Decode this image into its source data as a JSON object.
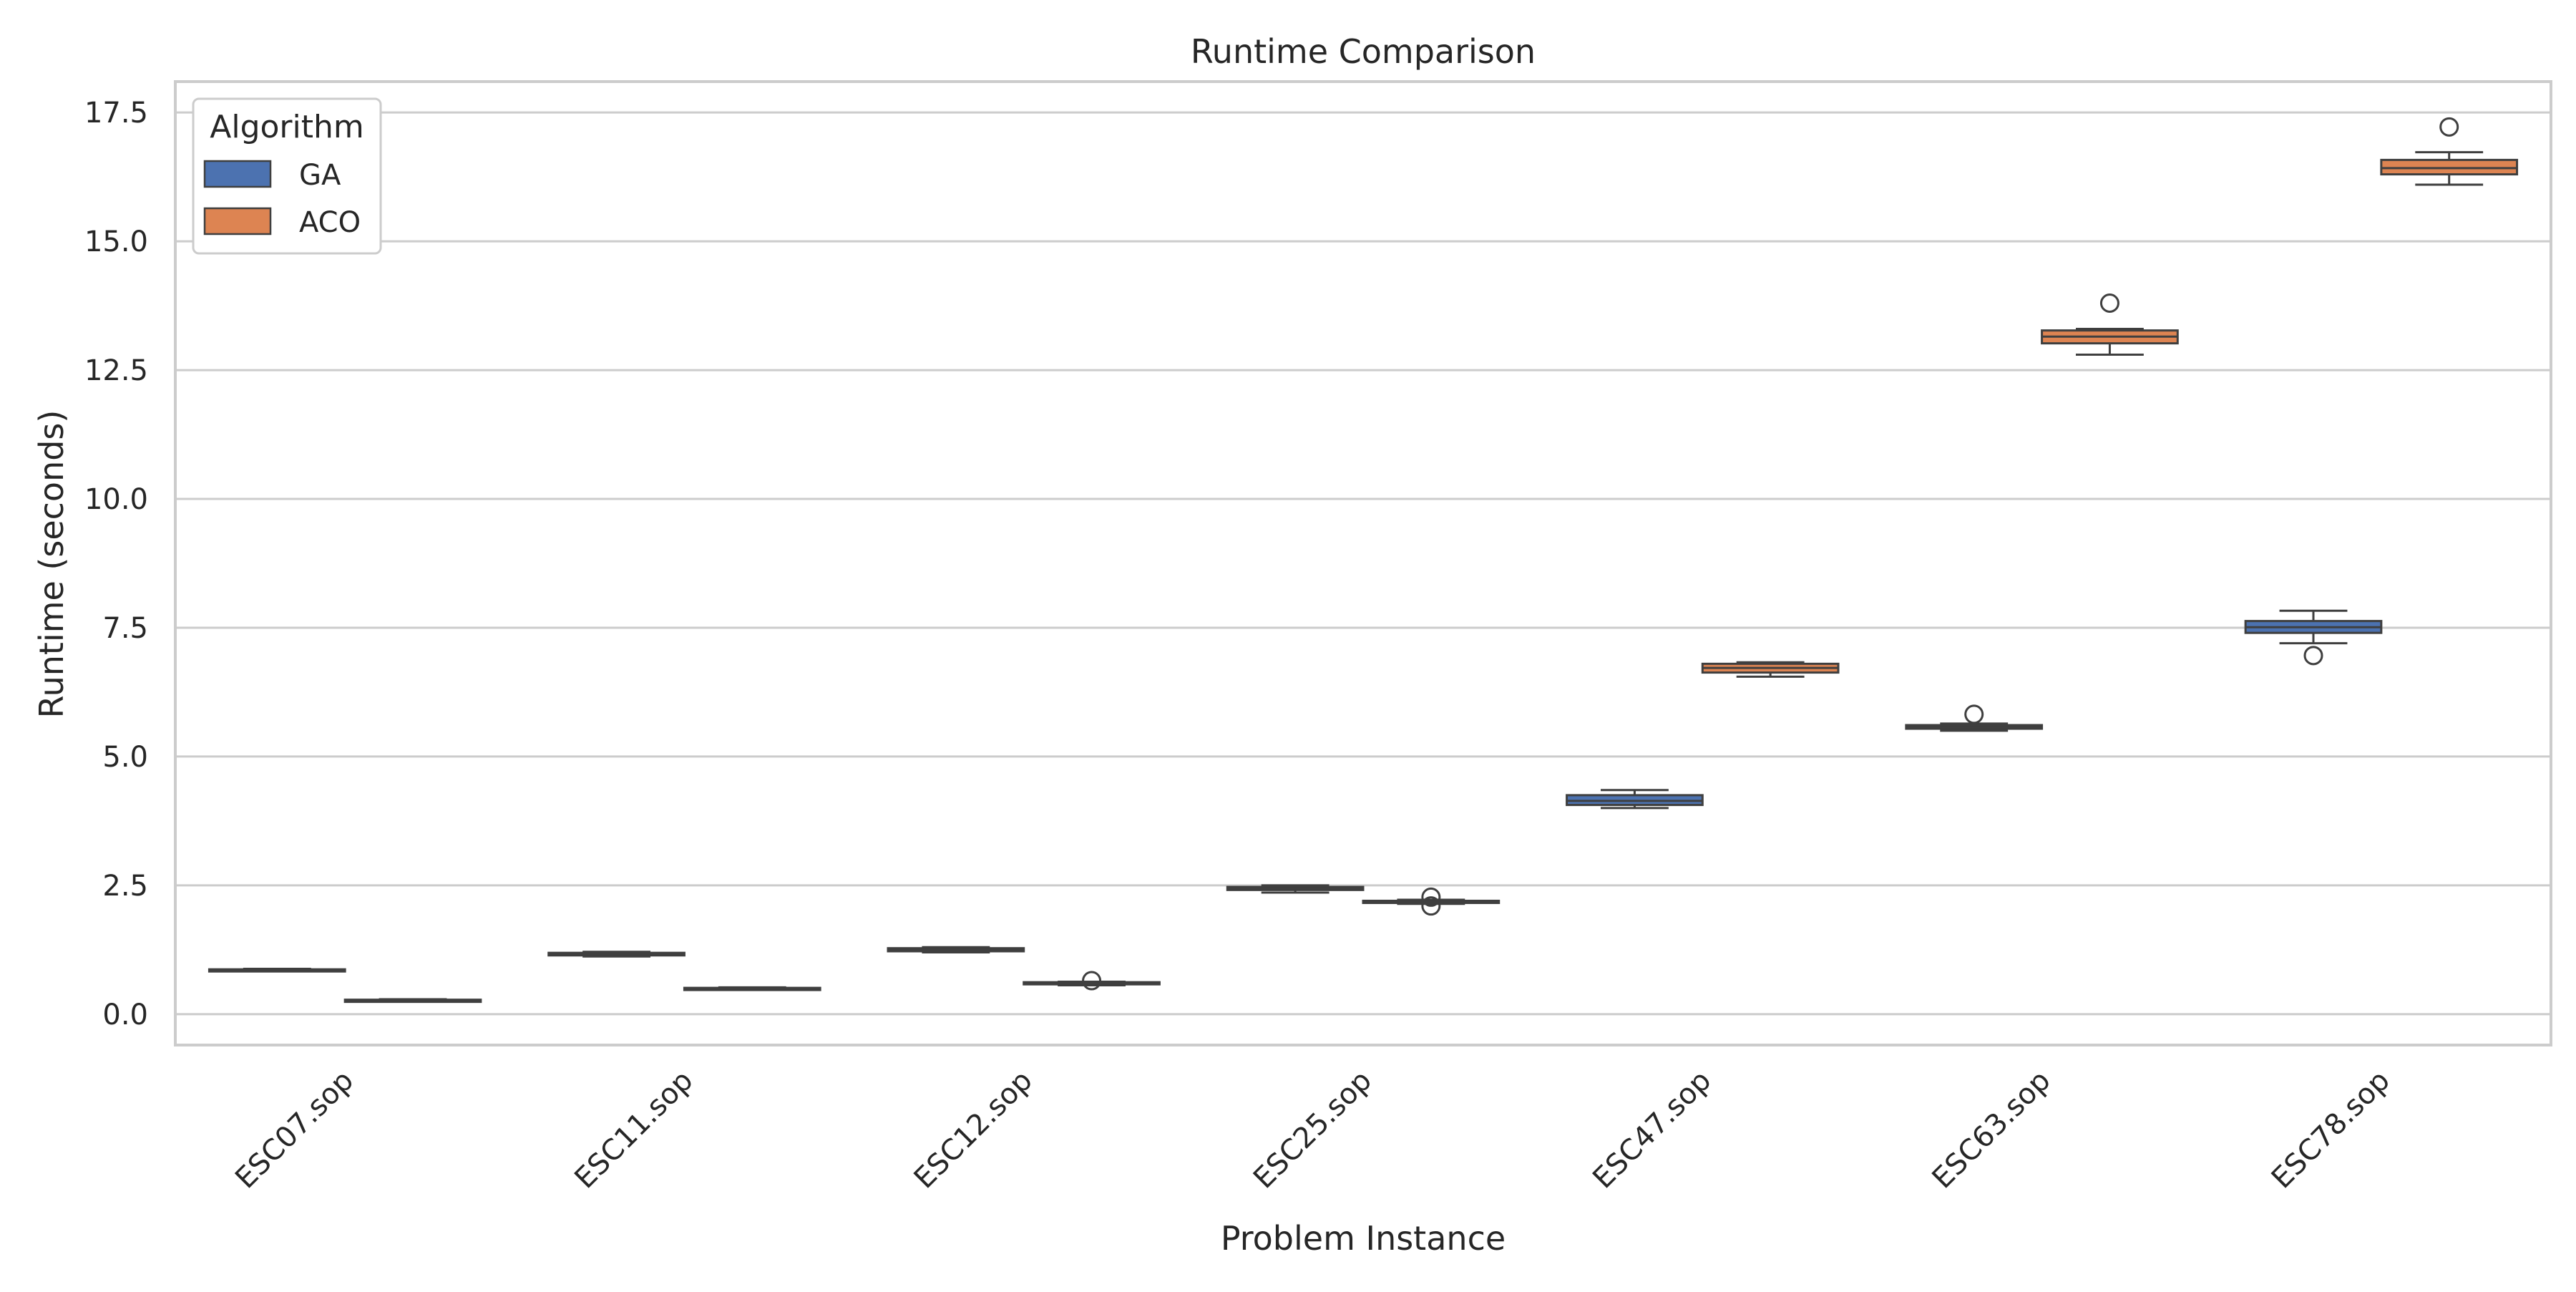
{
  "chart_data": {
    "type": "box",
    "title": "Runtime Comparison",
    "xlabel": "Problem Instance",
    "ylabel": "Runtime (seconds)",
    "ylim": [
      -0.6,
      18.1
    ],
    "yticks": [
      0.0,
      2.5,
      5.0,
      7.5,
      10.0,
      12.5,
      15.0,
      17.5
    ],
    "ytick_labels": [
      "0.0",
      "2.5",
      "5.0",
      "7.5",
      "10.0",
      "12.5",
      "15.0",
      "17.5"
    ],
    "categories": [
      "ESC07.sop",
      "ESC11.sop",
      "ESC12.sop",
      "ESC25.sop",
      "ESC47.sop",
      "ESC63.sop",
      "ESC78.sop"
    ],
    "grid": "horizontal",
    "legend": {
      "title": "Algorithm",
      "placement": "top-left"
    },
    "series": [
      {
        "name": "GA",
        "color": "#4c72b0",
        "boxes": [
          {
            "whislo": 0.84,
            "q1": 0.85,
            "med": 0.86,
            "q3": 0.87,
            "whishi": 0.88,
            "fliers": []
          },
          {
            "whislo": 1.12,
            "q1": 1.14,
            "med": 1.16,
            "q3": 1.19,
            "whishi": 1.21,
            "fliers": []
          },
          {
            "whislo": 1.2,
            "q1": 1.22,
            "med": 1.25,
            "q3": 1.28,
            "whishi": 1.3,
            "fliers": []
          },
          {
            "whislo": 2.36,
            "q1": 2.41,
            "med": 2.44,
            "q3": 2.47,
            "whishi": 2.5,
            "fliers": []
          },
          {
            "whislo": 4.0,
            "q1": 4.06,
            "med": 4.14,
            "q3": 4.25,
            "whishi": 4.35,
            "fliers": []
          },
          {
            "whislo": 5.5,
            "q1": 5.54,
            "med": 5.57,
            "q3": 5.61,
            "whishi": 5.64,
            "fliers": [
              5.82
            ]
          },
          {
            "whislo": 7.2,
            "q1": 7.4,
            "med": 7.51,
            "q3": 7.63,
            "whishi": 7.83,
            "fliers": [
              6.96
            ]
          }
        ]
      },
      {
        "name": "ACO",
        "color": "#dd8452",
        "boxes": [
          {
            "whislo": 0.25,
            "q1": 0.26,
            "med": 0.27,
            "q3": 0.28,
            "whishi": 0.29,
            "fliers": []
          },
          {
            "whislo": 0.48,
            "q1": 0.49,
            "med": 0.5,
            "q3": 0.51,
            "whishi": 0.52,
            "fliers": []
          },
          {
            "whislo": 0.56,
            "q1": 0.58,
            "med": 0.6,
            "q3": 0.62,
            "whishi": 0.63,
            "fliers": [
              0.65
            ]
          },
          {
            "whislo": 2.14,
            "q1": 2.16,
            "med": 2.18,
            "q3": 2.2,
            "whishi": 2.22,
            "fliers": [
              2.27,
              2.1
            ]
          },
          {
            "whislo": 6.55,
            "q1": 6.63,
            "med": 6.72,
            "q3": 6.8,
            "whishi": 6.83,
            "fliers": []
          },
          {
            "whislo": 12.8,
            "q1": 13.02,
            "med": 13.15,
            "q3": 13.27,
            "whishi": 13.3,
            "fliers": [
              13.8
            ]
          },
          {
            "whislo": 16.1,
            "q1": 16.3,
            "med": 16.42,
            "q3": 16.58,
            "whishi": 16.73,
            "fliers": [
              17.22
            ]
          }
        ]
      }
    ]
  }
}
